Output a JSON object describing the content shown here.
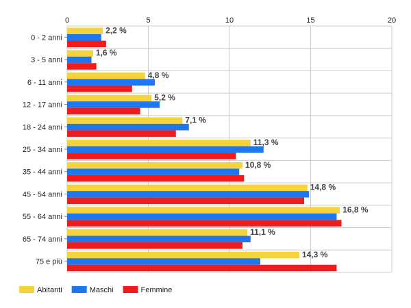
{
  "chart_data": {
    "type": "bar",
    "orientation": "horizontal",
    "categories": [
      "0 - 2 anni",
      "3 - 5 anni",
      "6 - 11 anni",
      "12 - 17 anni",
      "18 - 24 anni",
      "25 - 34 anni",
      "35 - 44 anni",
      "45 - 54 anni",
      "55 - 64 anni",
      "65 - 74 anni",
      "75 e più"
    ],
    "series": [
      {
        "name": "Abitanti",
        "color": "#f5d33a",
        "values": [
          2.2,
          1.6,
          4.8,
          5.2,
          7.1,
          11.3,
          10.8,
          14.8,
          16.8,
          11.1,
          14.3
        ]
      },
      {
        "name": "Maschi",
        "color": "#1f77f0",
        "values": [
          2.1,
          1.5,
          5.4,
          5.7,
          7.5,
          12.1,
          10.6,
          14.9,
          16.6,
          11.3,
          11.9
        ]
      },
      {
        "name": "Femmine",
        "color": "#ee1c1c",
        "values": [
          2.4,
          1.8,
          4.0,
          4.5,
          6.7,
          10.4,
          10.9,
          14.6,
          16.9,
          10.8,
          16.6
        ]
      }
    ],
    "data_labels": [
      "2,2 %",
      "1,6 %",
      "4,8 %",
      "5,2 %",
      "7,1 %",
      "11,3 %",
      "10,8 %",
      "14,8 %",
      "16,8 %",
      "11,1 %",
      "14,3 %"
    ],
    "xlim": [
      0,
      20
    ],
    "x_ticks": [
      0,
      5,
      10,
      15,
      20
    ],
    "x_axis_position": "top",
    "grid": true,
    "legend_position": "bottom-left",
    "title": "",
    "xlabel": "",
    "ylabel": ""
  }
}
